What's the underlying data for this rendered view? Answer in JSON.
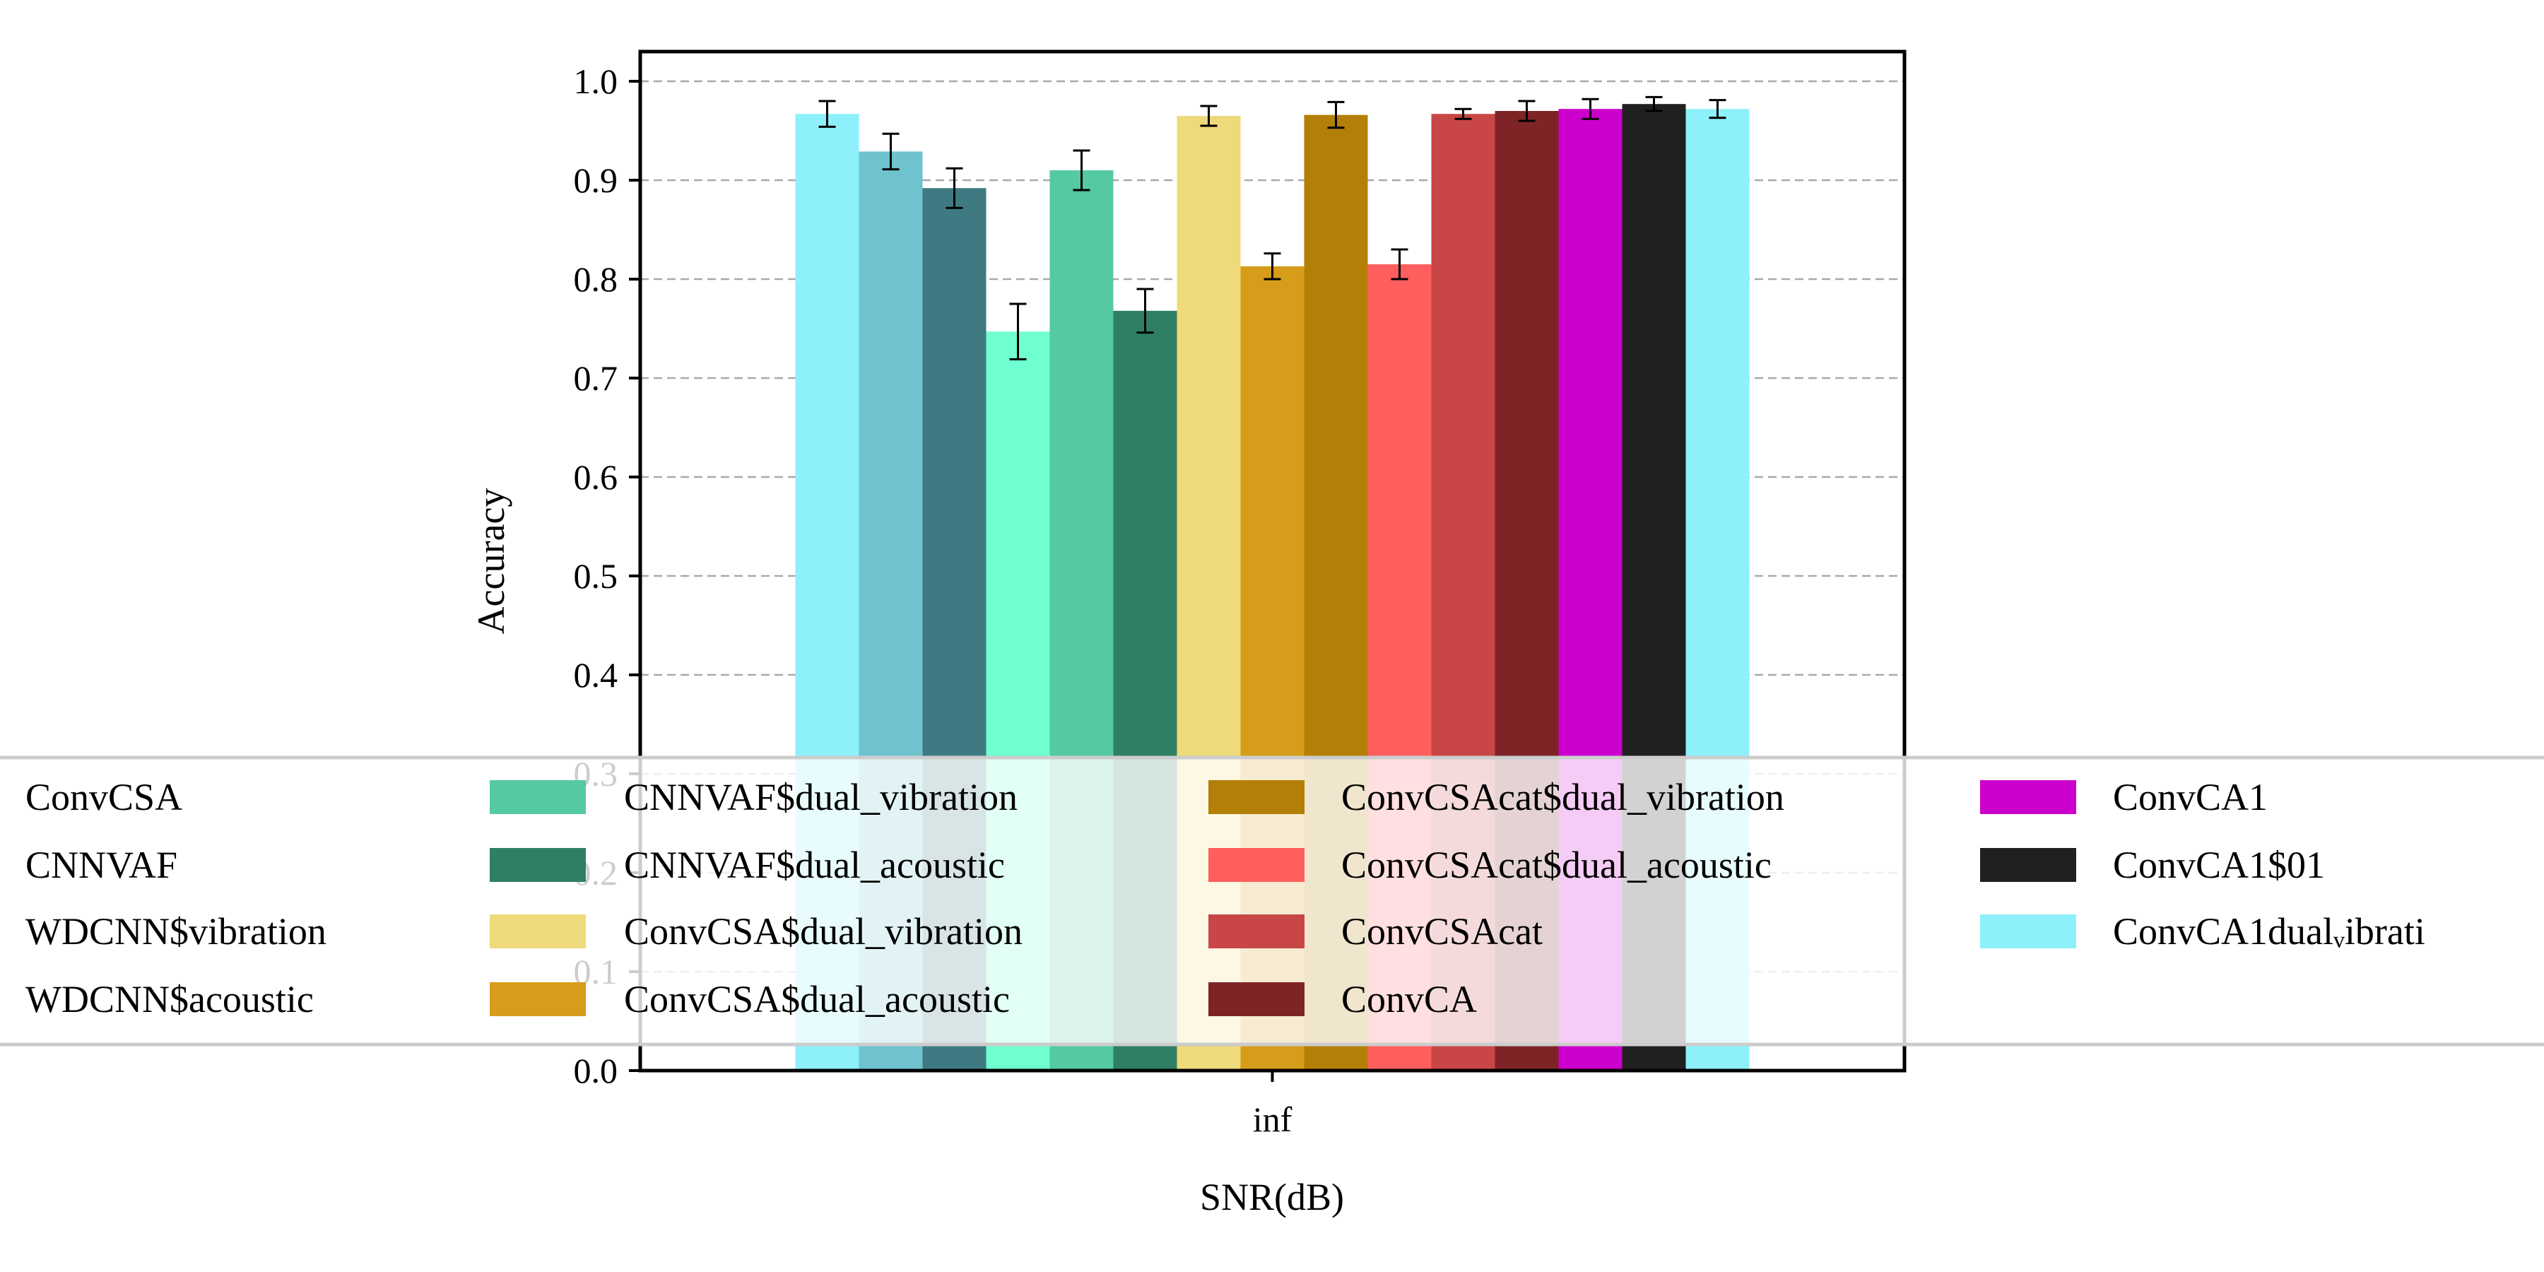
{
  "chart_data": {
    "type": "bar",
    "categories": [
      "inf"
    ],
    "xlabel": "SNR(dB)",
    "ylabel": "Accuracy",
    "ylim": [
      0,
      1.0
    ],
    "yticks": [
      "0.0",
      "0.1",
      "0.2",
      "0.3",
      "0.4",
      "0.5",
      "0.6",
      "0.7",
      "0.8",
      "0.9",
      "1.0"
    ],
    "grid": "horizontal dashed",
    "error_bars": true,
    "legend_position": "overlapping lower part of plot, spanning full width",
    "series": [
      {
        "name": "ConvCSA",
        "value": 0.967,
        "error": 0.013,
        "color": "#8EF0FA"
      },
      {
        "name": "CNNVAF",
        "value": 0.929,
        "error": 0.018,
        "color": "#6EC3CE"
      },
      {
        "name": "WDCNN$vibration",
        "value": 0.892,
        "error": 0.02,
        "color": "#3F7A82"
      },
      {
        "name": "WDCNN$acoustic",
        "value": 0.747,
        "error": 0.028,
        "color": "#70FFD0"
      },
      {
        "name": "CNNVAF$dual_vibration",
        "value": 0.91,
        "error": 0.02,
        "color": "#55C9A0"
      },
      {
        "name": "CNNVAF$dual_acoustic",
        "value": 0.768,
        "error": 0.022,
        "color": "#2E7F63"
      },
      {
        "name": "ConvCSA$dual_vibration",
        "value": 0.965,
        "error": 0.01,
        "color": "#EED97B"
      },
      {
        "name": "ConvCSA$dual_acoustic",
        "value": 0.813,
        "error": 0.013,
        "color": "#D79D1A"
      },
      {
        "name": "ConvCSAcat$dual_vibration",
        "value": 0.966,
        "error": 0.013,
        "color": "#B37F06"
      },
      {
        "name": "ConvCSAcat$dual_acoustic",
        "value": 0.815,
        "error": 0.015,
        "color": "#FF5E5E"
      },
      {
        "name": "ConvCSAcat",
        "value": 0.967,
        "error": 0.005,
        "color": "#C94646"
      },
      {
        "name": "ConvCA",
        "value": 0.97,
        "error": 0.01,
        "color": "#7E2426"
      },
      {
        "name": "ConvCA1",
        "value": 0.972,
        "error": 0.01,
        "color": "#CC00CC"
      },
      {
        "name": "ConvCA1$01",
        "value": 0.977,
        "error": 0.007,
        "color": "#202020"
      },
      {
        "name": "ConvCA1dual_vibration",
        "value": 0.972,
        "error": 0.009,
        "color": "#8EF0FA"
      }
    ],
    "legend": {
      "columns": [
        [
          "ConvCSA",
          "CNNVAF",
          "WDCNN$vibration",
          "WDCNN$acoustic"
        ],
        [
          "CNNVAF$dual_vibration",
          "CNNVAF$dual_acoustic",
          "ConvCSA$dual_vibration",
          "ConvCSA$dual_acoustic"
        ],
        [
          "ConvCSAcat$dual_vibration",
          "ConvCSAcat$dual_acoustic",
          "ConvCSAcat",
          "ConvCA"
        ],
        [
          "ConvCA1",
          "ConvCA1$01",
          "ConvCA1dual_vibration"
        ]
      ],
      "last_label_visible_text": "ConvCA1dualᵥibrati"
    }
  }
}
